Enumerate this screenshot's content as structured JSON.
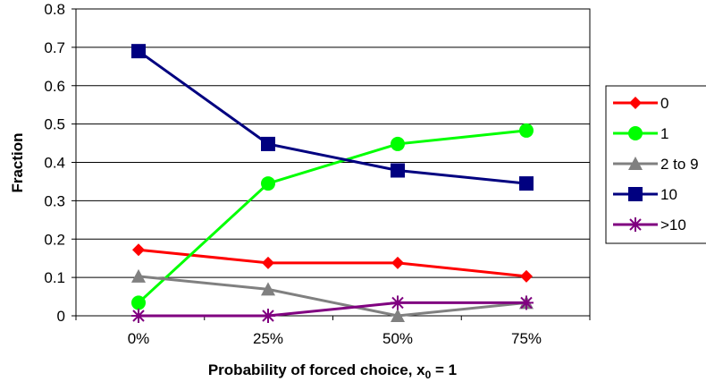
{
  "chart_data": {
    "type": "line",
    "categories": [
      "0%",
      "25%",
      "50%",
      "75%"
    ],
    "xlabel": "Probability of forced choice, x",
    "xlabel_sub": "0",
    "xlabel_tail": " = 1",
    "ylabel": "Fraction",
    "ylim": [
      0,
      0.8
    ],
    "yticks": [
      0,
      0.1,
      0.2,
      0.3,
      0.4,
      0.5,
      0.6,
      0.7,
      0.8
    ],
    "ytick_labels": [
      "0",
      "0.1",
      "0.2",
      "0.3",
      "0.4",
      "0.5",
      "0.6",
      "0.7",
      "0.8"
    ],
    "grid": "horizontal",
    "legend_position": "right",
    "series": [
      {
        "name": "0",
        "color": "#ff0000",
        "marker": "diamond",
        "values": [
          0.172,
          0.138,
          0.138,
          0.103
        ]
      },
      {
        "name": "1",
        "color": "#00ff00",
        "marker": "circle",
        "values": [
          0.034,
          0.345,
          0.448,
          0.483
        ]
      },
      {
        "name": "2 to 9",
        "color": "#808080",
        "marker": "triangle",
        "values": [
          0.103,
          0.069,
          0.0,
          0.034
        ]
      },
      {
        "name": "10",
        "color": "#000080",
        "marker": "square",
        "values": [
          0.69,
          0.448,
          0.379,
          0.345
        ]
      },
      {
        "name": ">10",
        "color": "#800080",
        "marker": "star",
        "values": [
          0.0,
          0.0,
          0.034,
          0.034
        ]
      }
    ]
  }
}
